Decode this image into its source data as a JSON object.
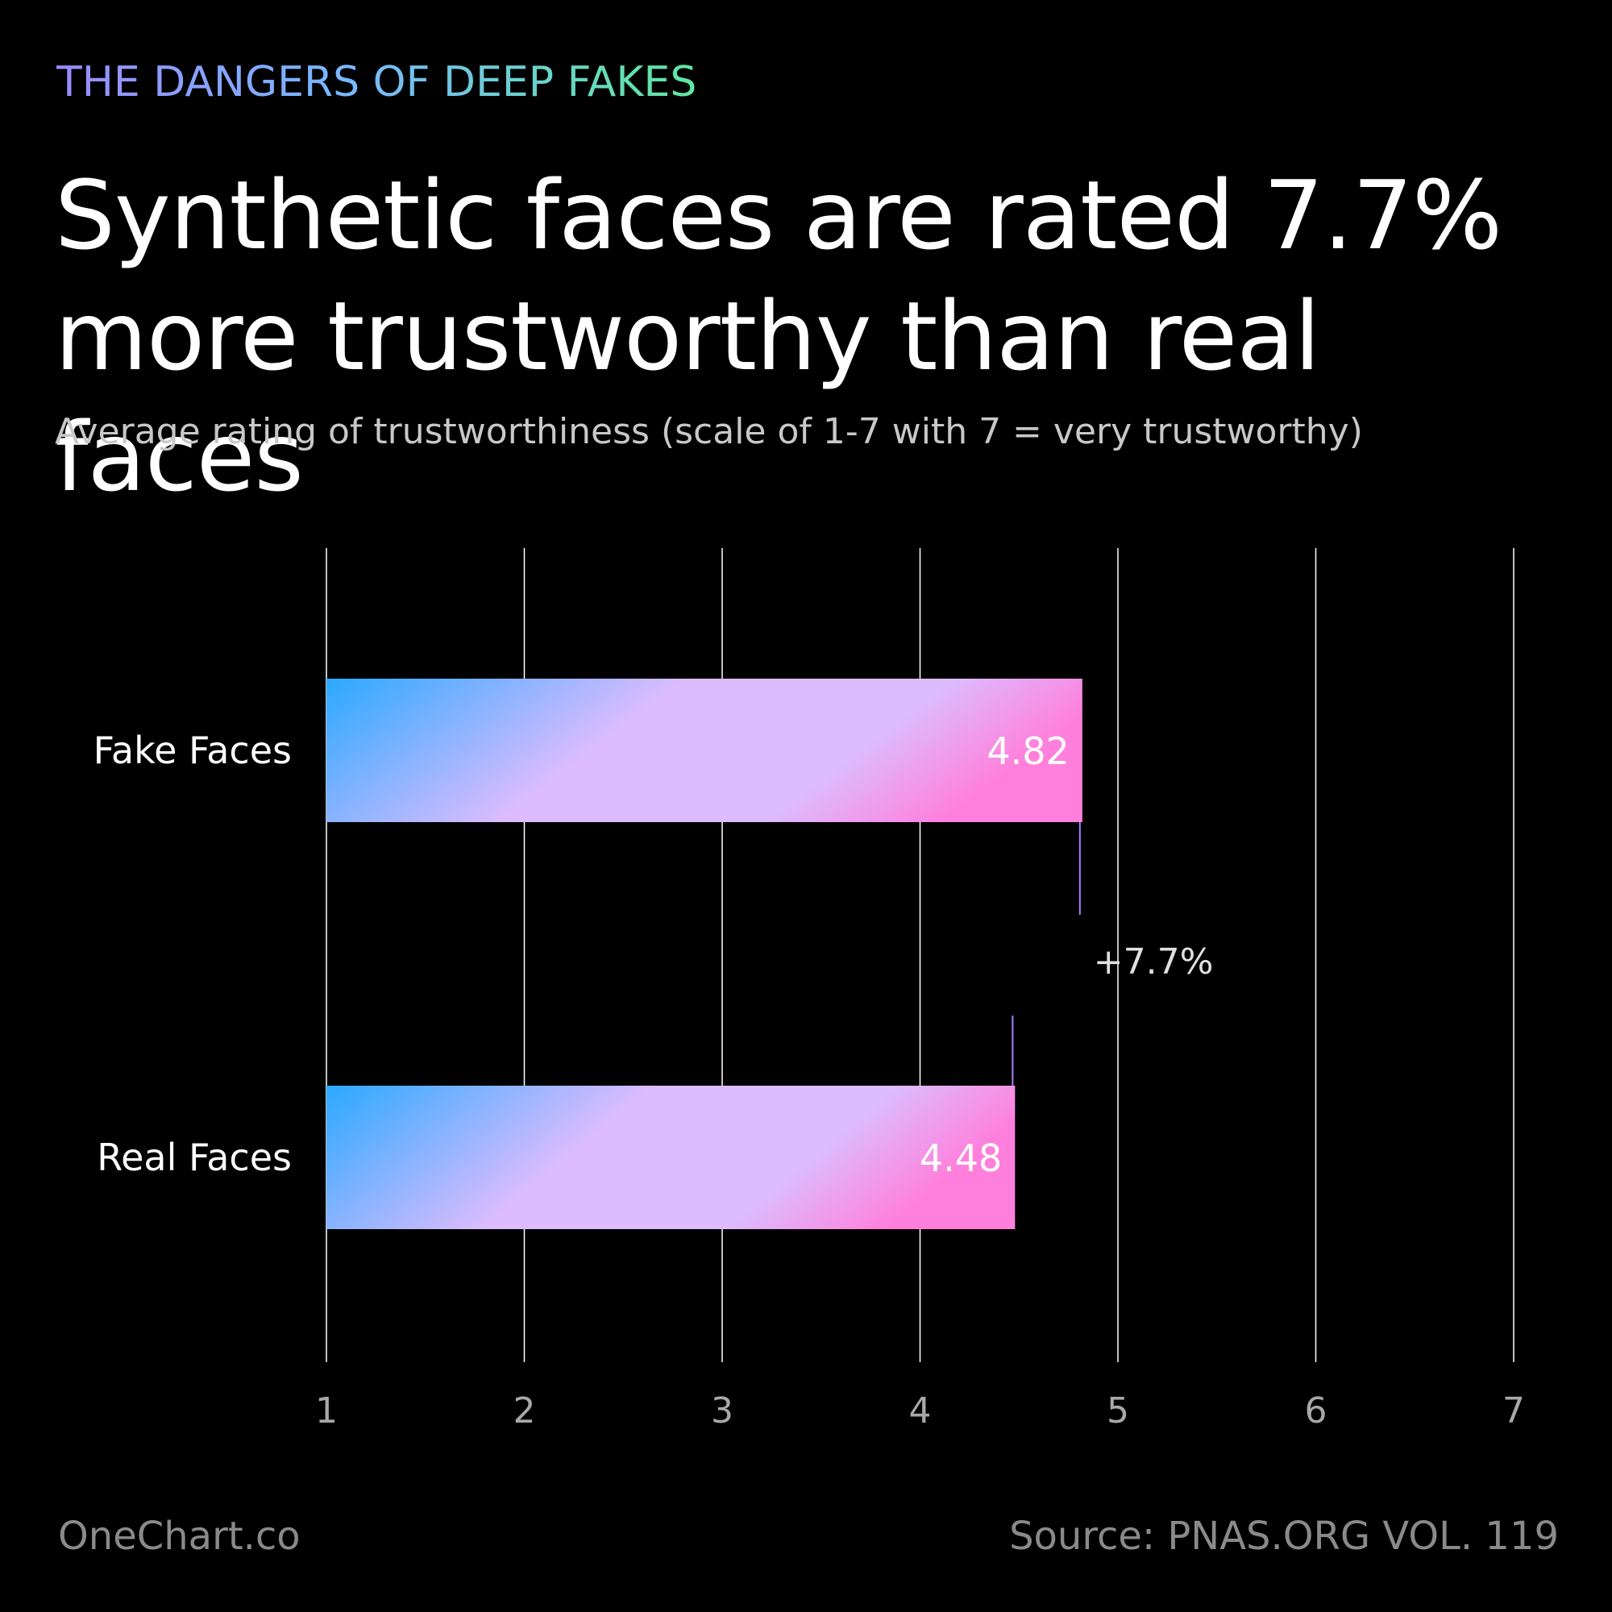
{
  "header": {
    "eyebrow": "THE DANGERS OF DEEP FAKES",
    "title": "Synthetic faces are rated 7.7% more trustworthy than real faces",
    "subtitle": "Average rating of trustworthiness (scale of 1-7 with 7 = very trustworthy)"
  },
  "footer": {
    "brand": "OneChart.co",
    "source": "Source: PNAS.ORG VOL. 119"
  },
  "colors": {
    "background": "#000000",
    "gridline": "#ffffff",
    "bar_start": "#2aa9ff",
    "bar_mid": "#dcbcff",
    "bar_end": "#ff80dc",
    "connector": "#a080ff",
    "tick_label": "#a8a8a8"
  },
  "chart_data": {
    "type": "bar",
    "orientation": "horizontal",
    "title": "Synthetic faces are rated 7.7% more trustworthy than real faces",
    "subtitle": "Average rating of trustworthiness (scale of 1-7 with 7 = very trustworthy)",
    "categories": [
      "Fake Faces",
      "Real Faces"
    ],
    "values": [
      4.82,
      4.48
    ],
    "value_labels": [
      "4.82",
      "4.48"
    ],
    "xlim": [
      1,
      7
    ],
    "xticks": [
      1,
      2,
      3,
      4,
      5,
      6,
      7
    ],
    "xtick_labels": [
      "1",
      "2",
      "3",
      "4",
      "5",
      "6",
      "7"
    ],
    "grid": "vertical",
    "annotation": {
      "text": "+7.7%"
    }
  }
}
